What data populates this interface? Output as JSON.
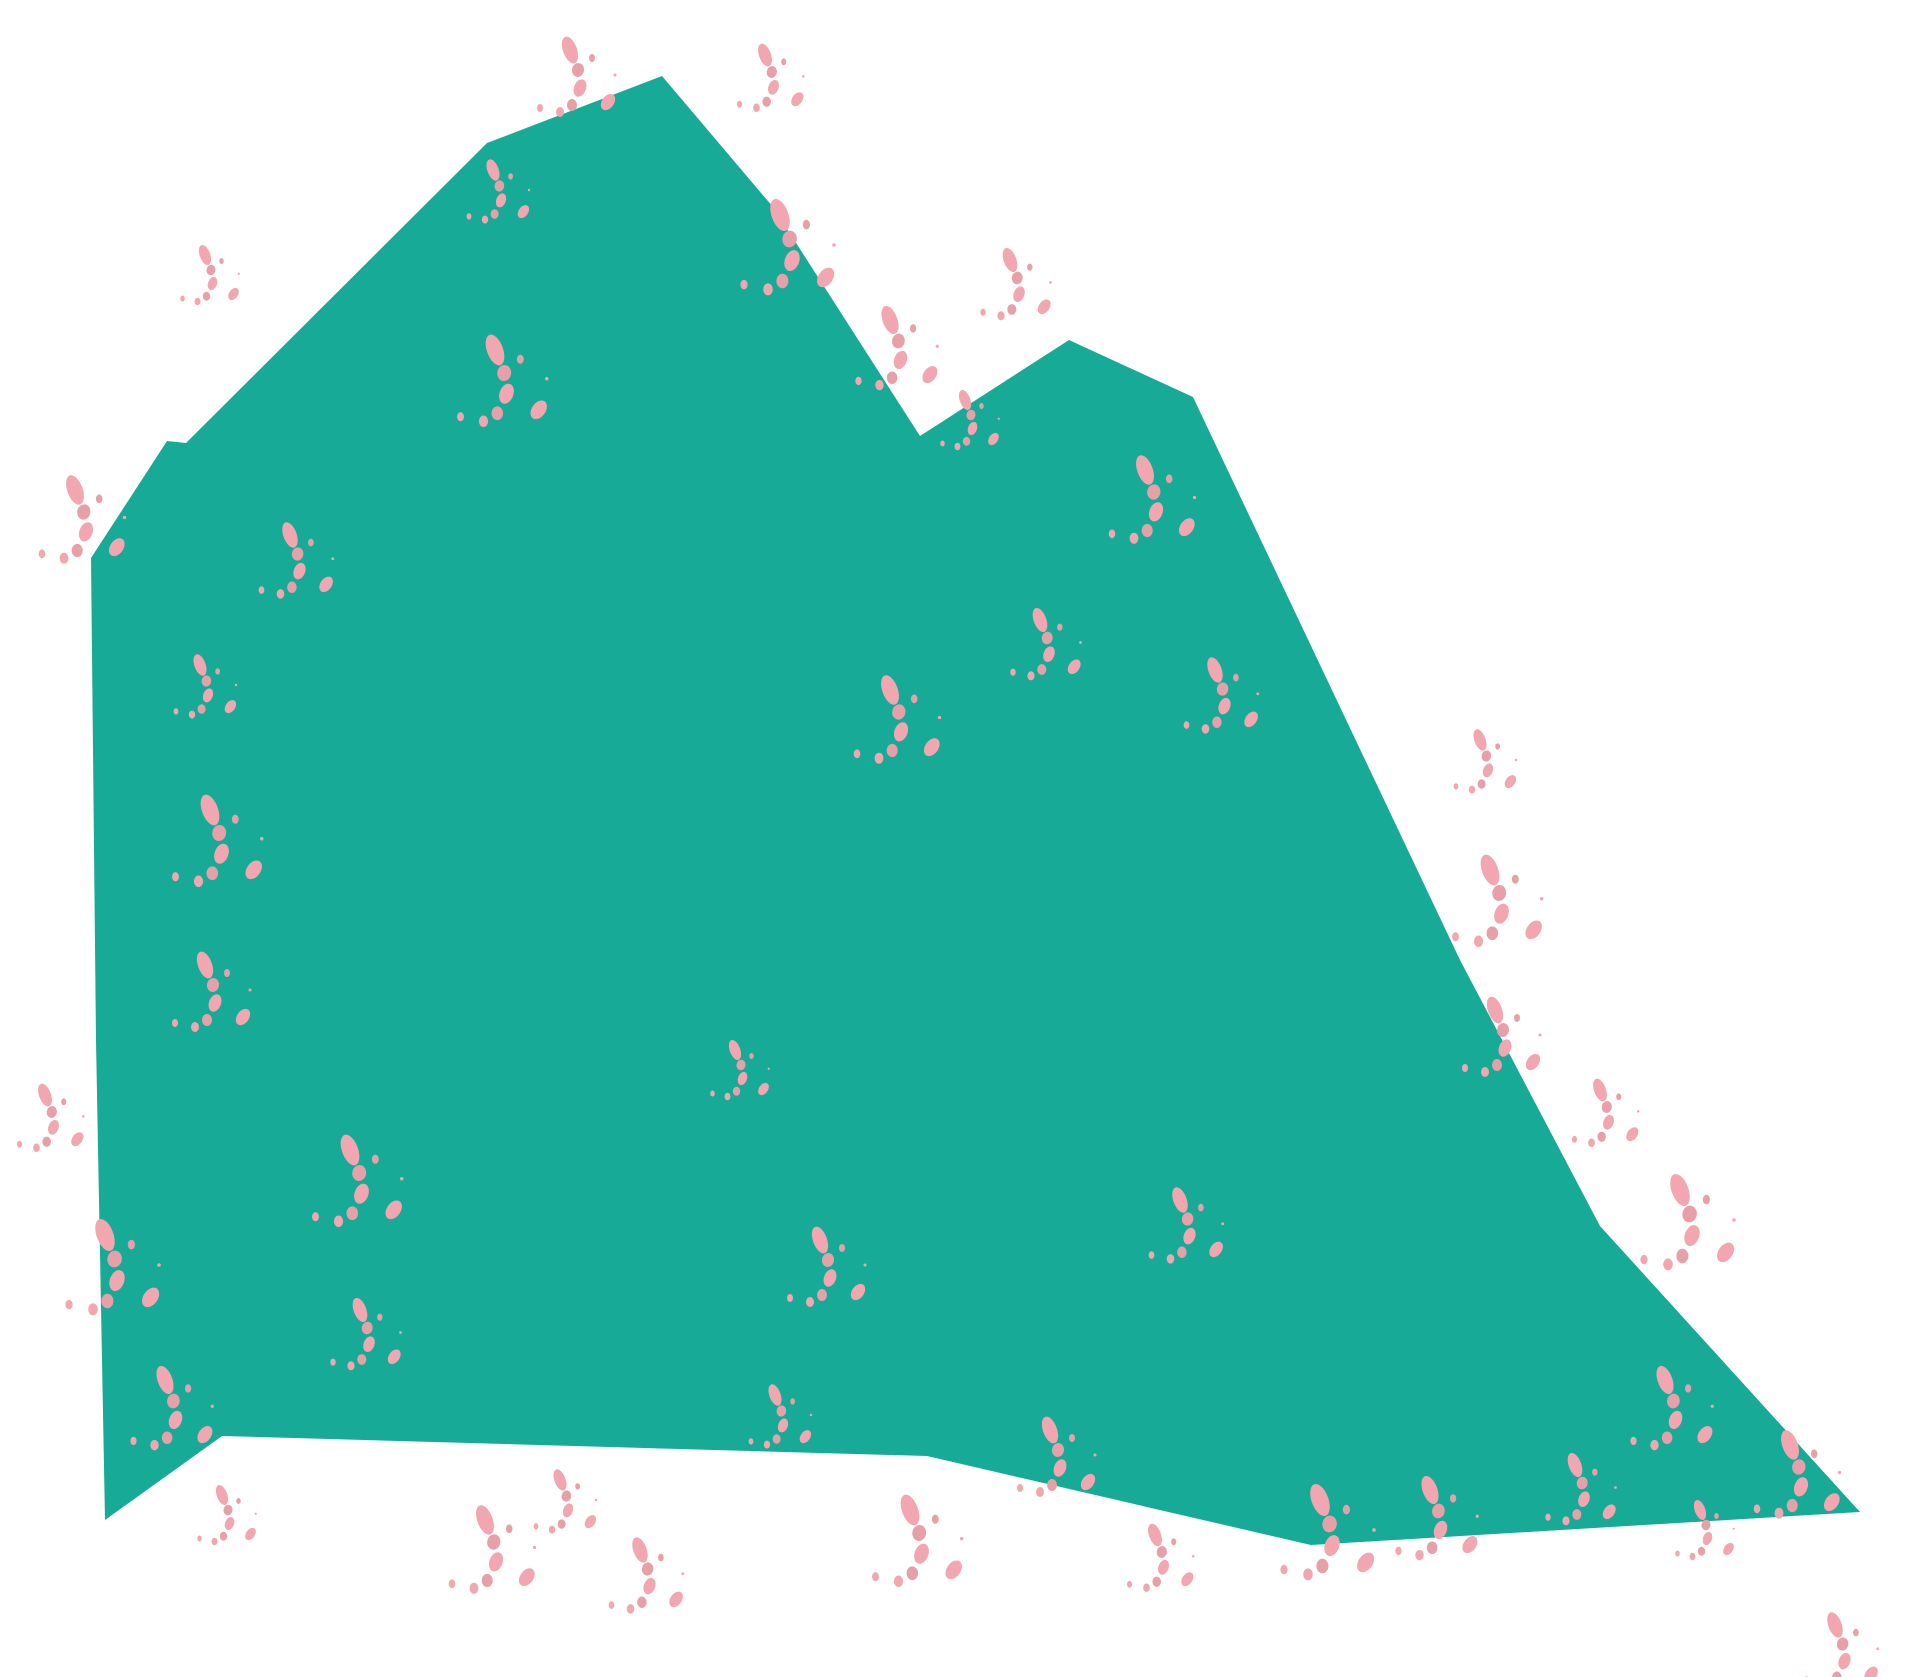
{
  "image": {
    "background_color": "#ffffff",
    "shape": {
      "kind": "irregular-polygon",
      "fill_color": "#17ab97"
    },
    "speckles": {
      "kind": "petal-speckle-cluster",
      "color": "#f2a7b0",
      "alt_color": "#e8a0a8",
      "count": 46
    }
  }
}
